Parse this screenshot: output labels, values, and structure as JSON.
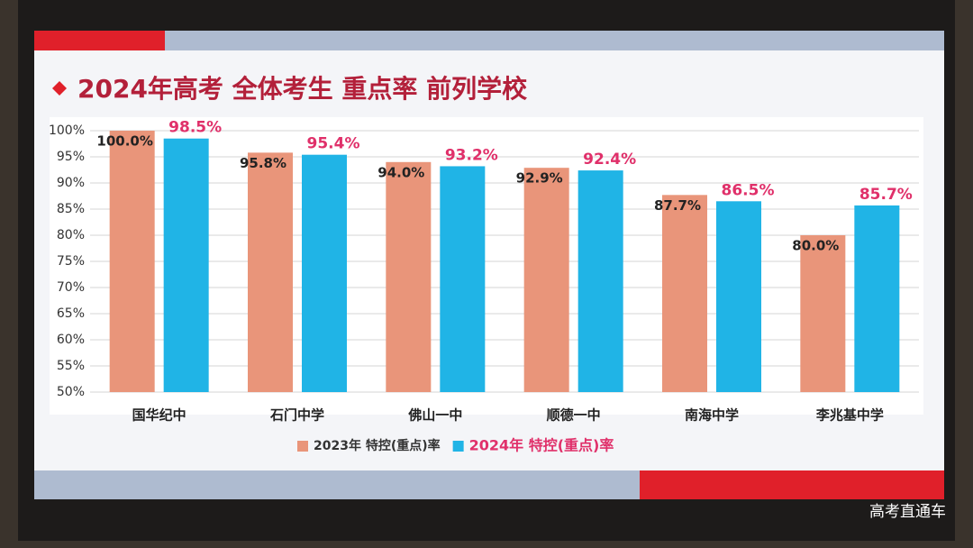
{
  "chart_data": {
    "type": "bar",
    "title": "2024年高考 全体考生 重点率 前列学校",
    "categories": [
      "国华纪中",
      "石门中学",
      "佛山一中",
      "顺德一中",
      "南海中学",
      "李兆基中学"
    ],
    "series": [
      {
        "name": "2023年 特控(重点)率",
        "color": "#e9957a",
        "label_color": "#222222",
        "values": [
          100.0,
          95.8,
          94.0,
          92.9,
          87.7,
          80.0
        ],
        "value_labels": [
          "100.0%",
          "95.8%",
          "94.0%",
          "92.9%",
          "87.7%",
          "80.0%"
        ]
      },
      {
        "name": "2024年 特控(重点)率",
        "color": "#20b4e6",
        "label_color": "#e0306a",
        "values": [
          98.5,
          95.4,
          93.2,
          92.4,
          86.5,
          85.7
        ],
        "value_labels": [
          "98.5%",
          "95.4%",
          "93.2%",
          "92.4%",
          "86.5%",
          "85.7%"
        ]
      }
    ],
    "ylim": [
      50,
      100
    ],
    "yticks": [
      {
        "value": 50,
        "label": "50%"
      },
      {
        "value": 55,
        "label": "55%"
      },
      {
        "value": 60,
        "label": "60%"
      },
      {
        "value": 65,
        "label": "65%"
      },
      {
        "value": 70,
        "label": "70%"
      },
      {
        "value": 75,
        "label": "75%"
      },
      {
        "value": 80,
        "label": "80%"
      },
      {
        "value": 85,
        "label": "85%"
      },
      {
        "value": 90,
        "label": "90%"
      },
      {
        "value": 95,
        "label": "95%"
      },
      {
        "value": 100,
        "label": "100%"
      }
    ],
    "grid": true,
    "legend": "bottom"
  },
  "watermark": "高考直通车"
}
